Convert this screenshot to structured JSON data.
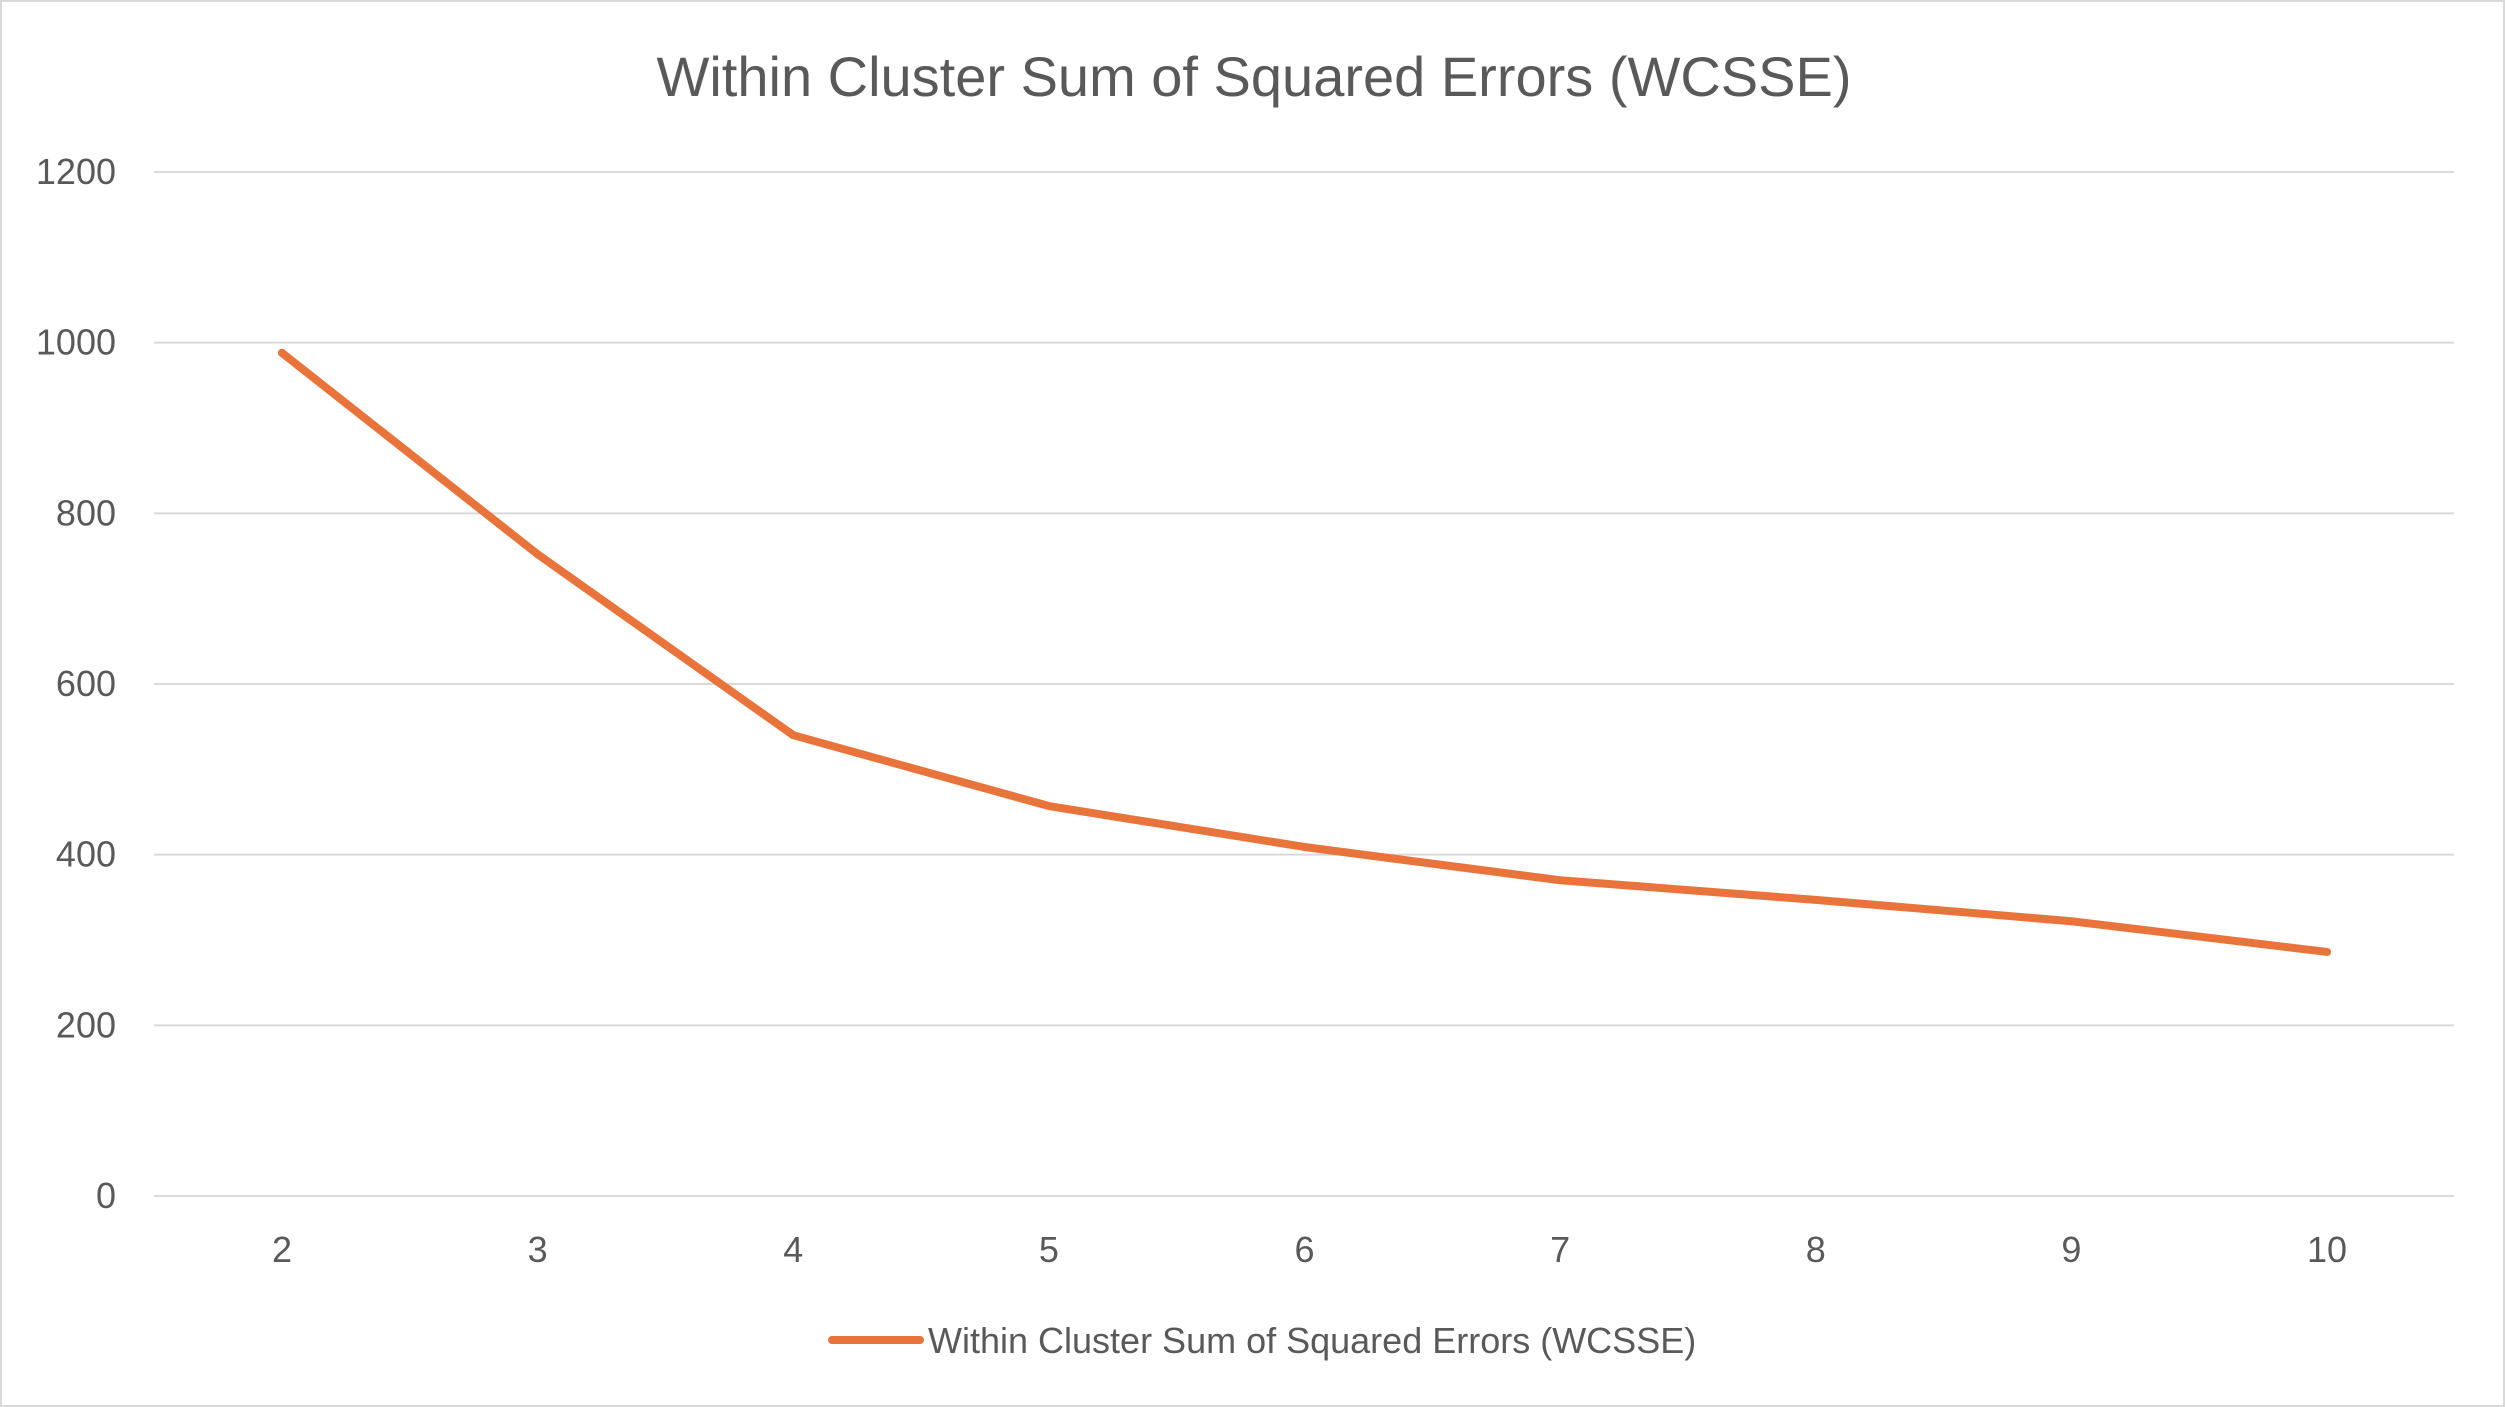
{
  "chart_data": {
    "type": "line",
    "title": "Within Cluster Sum of Squared Errors (WCSSE)",
    "xlabel": "",
    "ylabel": "",
    "categories": [
      "2",
      "3",
      "4",
      "5",
      "6",
      "7",
      "8",
      "9",
      "10"
    ],
    "series": [
      {
        "name": "Within Cluster Sum of Squared Errors (WCSSE)",
        "color": "#e8743b",
        "values": [
          988,
          752,
          540,
          457,
          409,
          370,
          347,
          322,
          286
        ]
      }
    ],
    "ylim": [
      0,
      1200
    ],
    "yticks": [
      "0",
      "200",
      "400",
      "600",
      "800",
      "1000",
      "1200"
    ],
    "grid": true,
    "legend": "bottom-center"
  },
  "colors": {
    "gridline": "#d9d9d9",
    "text": "#595959",
    "border": "#d9d9d9"
  }
}
